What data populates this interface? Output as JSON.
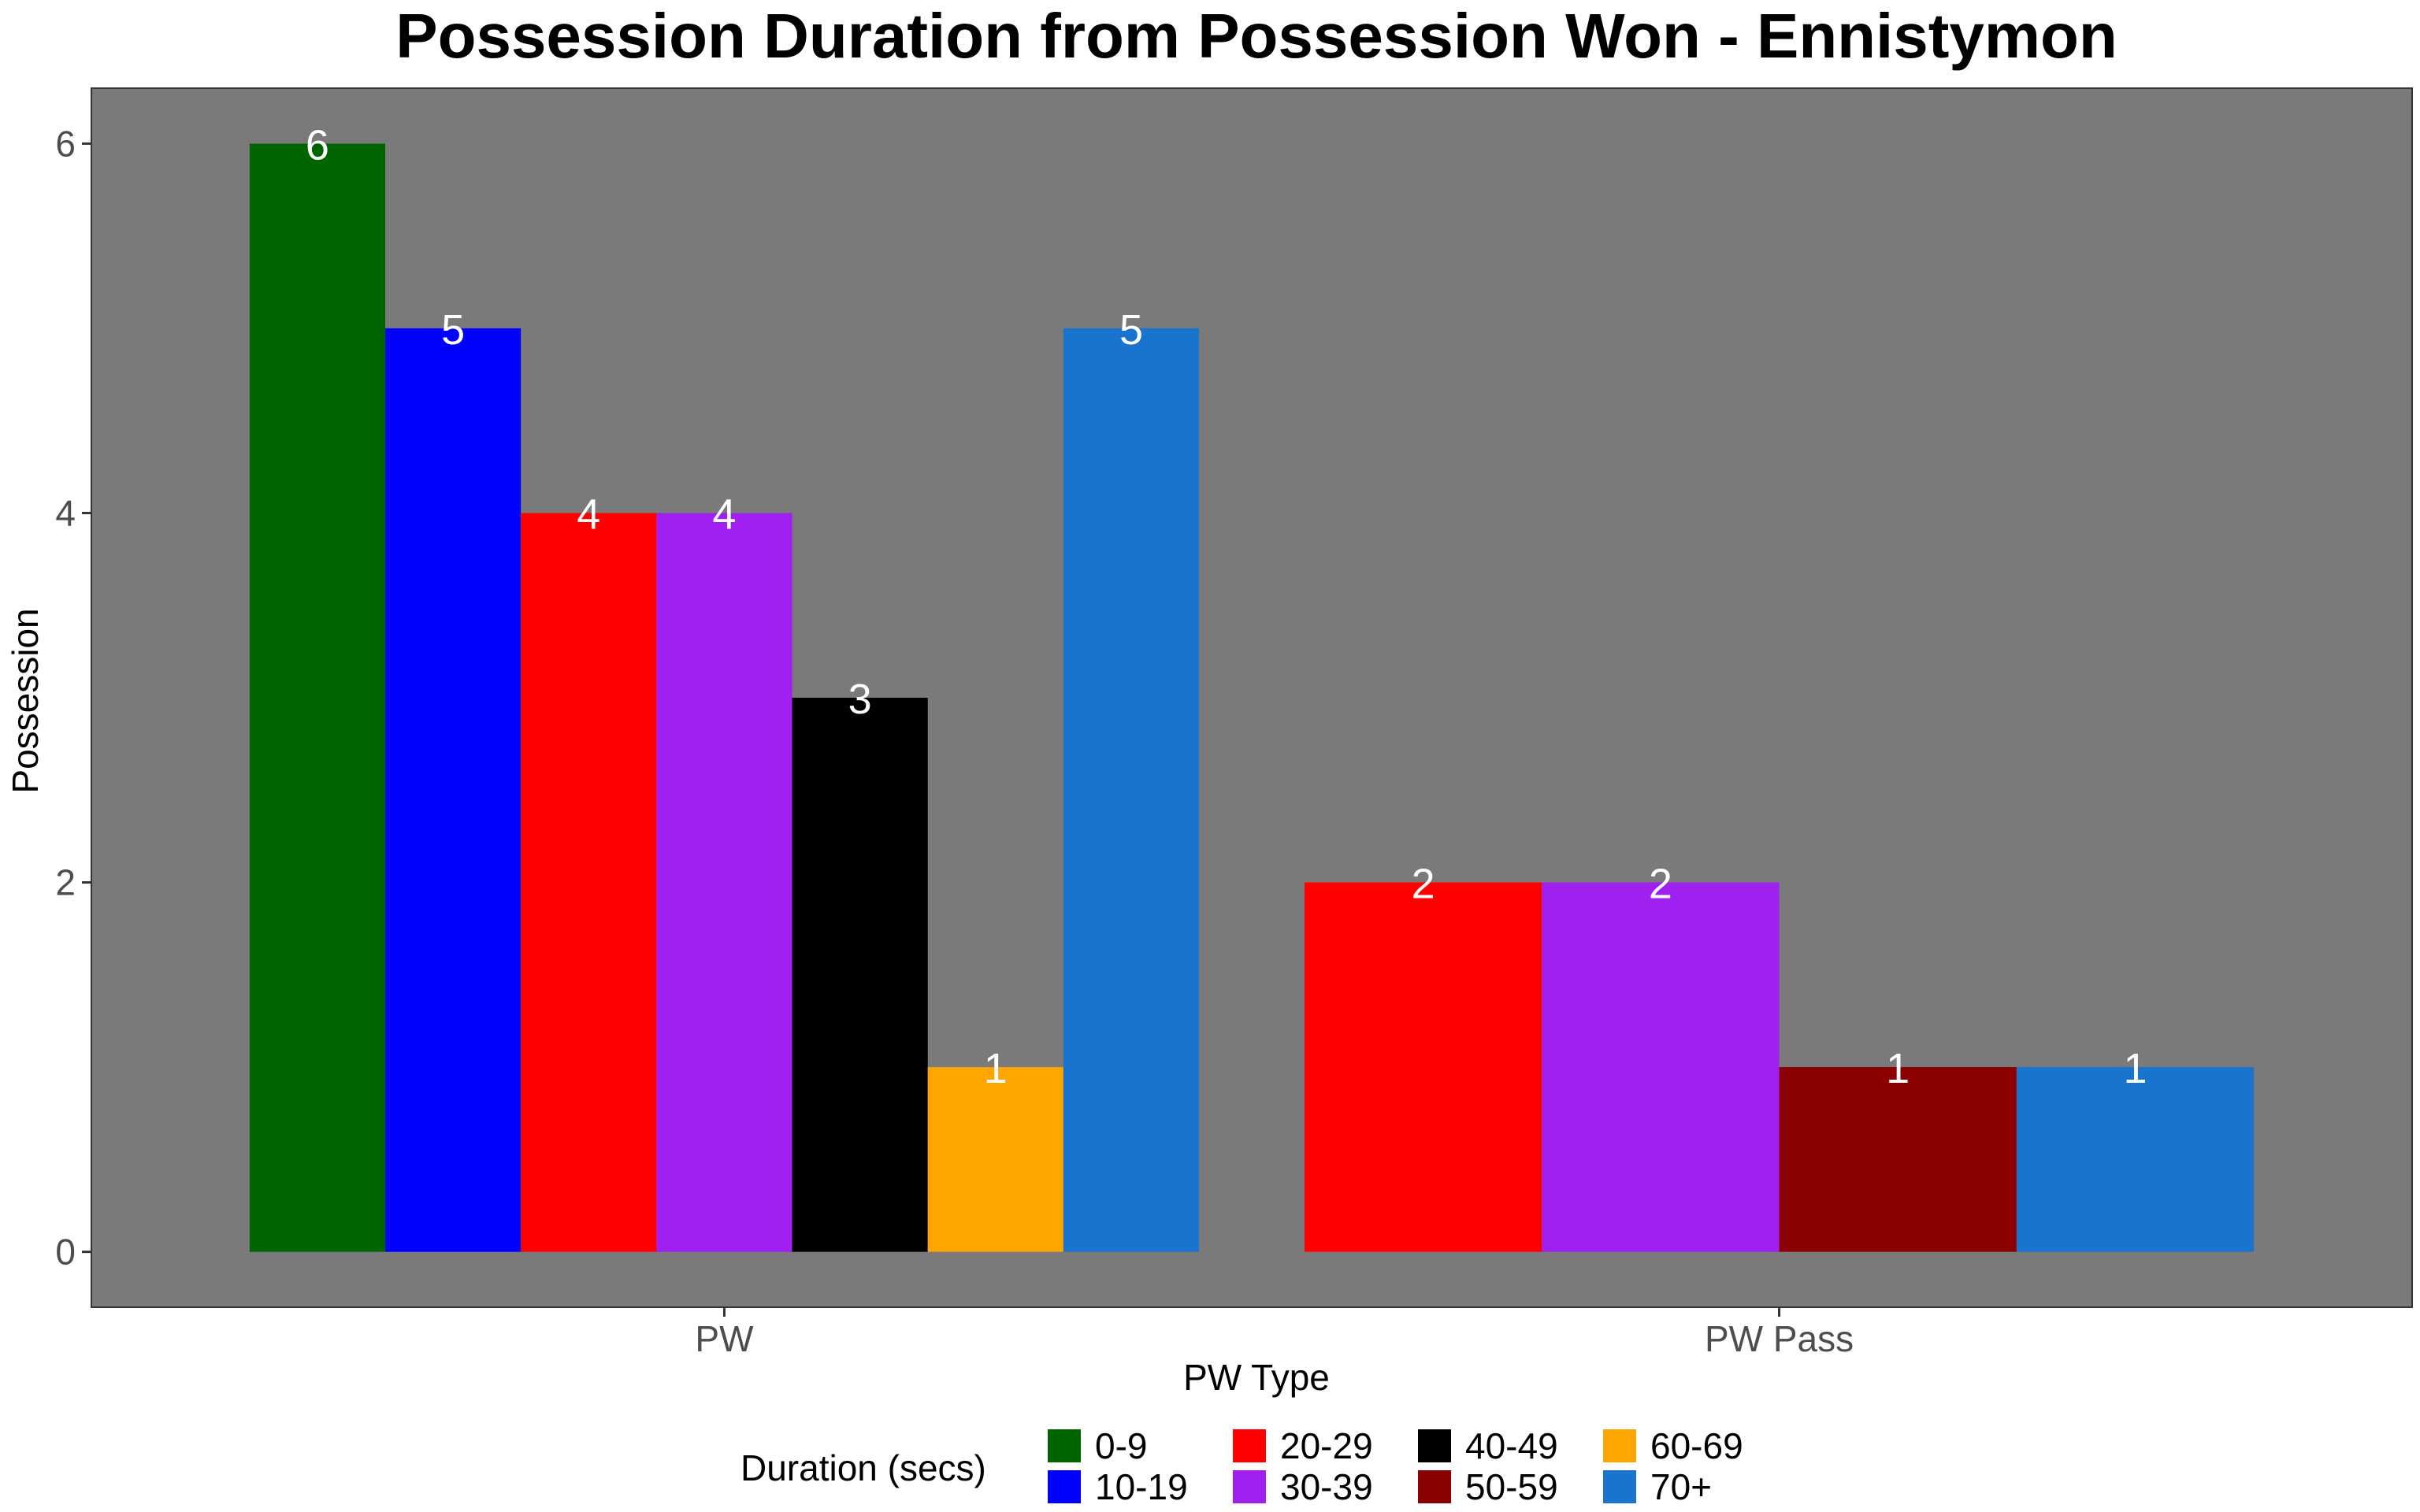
{
  "chart_data": {
    "type": "bar",
    "title": "Possession Duration from Possession Won - Ennistymon",
    "xlabel": "PW Type",
    "ylabel": "Possession",
    "ylim": [
      -0.3,
      6.3
    ],
    "yticks": [
      0,
      2,
      4,
      6
    ],
    "categories": [
      "PW",
      "PW Pass"
    ],
    "grid": false,
    "panel_background": "#7a7a7a",
    "legend": {
      "title": "Duration (secs)",
      "position": "bottom",
      "entries": [
        {
          "label": "0-9",
          "color": "#006400"
        },
        {
          "label": "10-19",
          "color": "#0000ff"
        },
        {
          "label": "20-29",
          "color": "#ff0000"
        },
        {
          "label": "30-39",
          "color": "#a020f0"
        },
        {
          "label": "40-49",
          "color": "#000000"
        },
        {
          "label": "50-59",
          "color": "#8b0000"
        },
        {
          "label": "60-69",
          "color": "#ffa500"
        },
        {
          "label": "70+",
          "color": "#1874cd"
        }
      ]
    },
    "groups": [
      {
        "category": "PW",
        "bars": [
          {
            "series": "0-9",
            "value": 6
          },
          {
            "series": "10-19",
            "value": 5
          },
          {
            "series": "20-29",
            "value": 4
          },
          {
            "series": "30-39",
            "value": 4
          },
          {
            "series": "40-49",
            "value": 3
          },
          {
            "series": "60-69",
            "value": 1
          },
          {
            "series": "70+",
            "value": 5
          }
        ]
      },
      {
        "category": "PW Pass",
        "bars": [
          {
            "series": "20-29",
            "value": 2
          },
          {
            "series": "30-39",
            "value": 2
          },
          {
            "series": "50-59",
            "value": 1
          },
          {
            "series": "70+",
            "value": 1
          }
        ]
      }
    ]
  }
}
